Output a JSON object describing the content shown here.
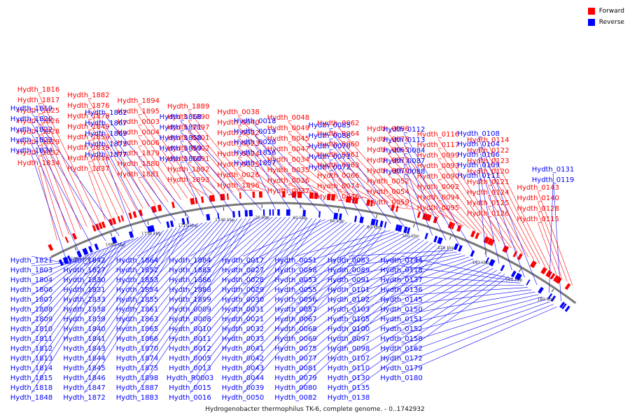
{
  "title": "Hydrogenobacter thermophilus TK-6, complete genome. - 0..1742932",
  "colors": {
    "forward": "#ff0000",
    "reverse": "#0000ff",
    "backbone": "#777777"
  },
  "legend": [
    {
      "name": "Forward",
      "color": "#ff0000"
    },
    {
      "name": "Reverse",
      "color": "#0000ff"
    }
  ],
  "ticks": [
    "1660 kbp",
    "1680 kbp",
    "1700 kbp",
    "1720 kbp",
    "1740 kbp",
    "20 kbp",
    "40 kbp",
    "60 kbp",
    "80 kbp",
    "100 kbp",
    "120 kbp",
    "140 kbp",
    "160 kbp",
    "180 kbp"
  ],
  "forward_labels": [
    "Hydth_1834",
    "Hydth_1832",
    "Hydth_1829",
    "Hydth_1828",
    "Hydth_1826",
    "Hydth_1825",
    "Hydth_1817",
    "Hydth_1816",
    "Hydth_1837",
    "Hydth_1836",
    "Hydth_1835",
    "Hydth_1850",
    "Hydth_1849",
    "Hydth_1878",
    "Hydth_1876",
    "Hydth_1882",
    "Hydth_1881",
    "Hydth_1880",
    "Hydth_1879",
    "Hydth_0006",
    "Hydth_0004",
    "Hydth_0003",
    "Hydth_1895",
    "Hydth_1894",
    "Hydth_1893",
    "Hydth_1892",
    "Hydth_1891",
    "Hydth_0002",
    "Hydth_0001",
    "Hydth_1897",
    "Hydth_1890",
    "Hydth_1889",
    "Hydth_1896",
    "Hydth_0026",
    "Hydth_0025",
    "Hydth_0024",
    "Hydth_0023",
    "Hydth_0022",
    "Hydth_0040",
    "Hydth_0038",
    "Hydth_0037",
    "Hydth_0036",
    "Hydth_0035",
    "Hydth_0034",
    "Hydth_0047",
    "Hydth_0045",
    "Hydth_0049",
    "Hydth_0048",
    "Hydth_0046",
    "Hydth_0074",
    "Hydth_0066",
    "Hydth_0063",
    "Hydth_0061",
    "Hydth_0060",
    "Hydth_0064",
    "Hydth_0062",
    "Hydth_0059",
    "Hydth_0054",
    "Hydth_0052",
    "Hydth_0076",
    "Hydth_0073",
    "Hydth_0065",
    "Hydth_0078",
    "Hydth_0096",
    "Hydth_0095",
    "Hydth_0094",
    "Hydth_0092",
    "Hydth_0090",
    "Hydth_0093",
    "Hydth_0099",
    "Hydth_0117",
    "Hydth_0116",
    "Hydth_0126",
    "Hydth_0125",
    "Hydth_0124",
    "Hydth_0121",
    "Hydth_0120",
    "Hydth_0123",
    "Hydth_0122",
    "Hydth_0114",
    "Hydth_0115",
    "Hydth_0128",
    "Hydth_0140",
    "Hydth_0143"
  ],
  "reverse_labels_outer": [
    "Hydth_1824",
    "Hydth_1823",
    "Hydth_1822",
    "Hydth_1820",
    "Hydth_1819",
    "Hydth_1877",
    "Hydth_1873",
    "Hydth_1869",
    "Hydth_1867",
    "Hydth_1862",
    "Hydth_1860",
    "Hydth_1859",
    "Hydth_1858",
    "Hydth_1871",
    "Hydth_1868",
    "Hydth_1857",
    "Hydth_1856",
    "Hydth_0020",
    "Hydth_0019",
    "Hydth_0018",
    "Hydth_0072",
    "Hydth_0071",
    "Hydth_0070",
    "Hydth_0086",
    "Hydth_0085",
    "Hydth_0088",
    "Hydth_0087",
    "Hydth_0084",
    "Hydth_0113",
    "Hydth_0112",
    "Hydth_0111",
    "Hydth_0109",
    "Hydth_0106",
    "Hydth_0104",
    "Hydth_0108",
    "Hydth_0119",
    "Hydth_0131"
  ],
  "reverse_labels_inner": [
    "Hydth_1821",
    "Hydth_1803",
    "Hydth_1804",
    "Hydth_1806",
    "Hydth_1807",
    "Hydth_1808",
    "Hydth_1809",
    "Hydth_1810",
    "Hydth_1811",
    "Hydth_1812",
    "Hydth_1813",
    "Hydth_1814",
    "Hydth_1815",
    "Hydth_1818",
    "Hydth_1848",
    "Hydth_1842",
    "Hydth_1827",
    "Hydth_1830",
    "Hydth_1831",
    "Hydth_1833",
    "Hydth_1838",
    "Hydth_1839",
    "Hydth_1840",
    "Hydth_1841",
    "Hydth_1843",
    "Hydth_1844",
    "Hydth_1845",
    "Hydth_1846",
    "Hydth_1847",
    "Hydth_1872",
    "Hydth_1864",
    "Hydth_1852",
    "Hydth_1853",
    "Hydth_1854",
    "Hydth_1855",
    "Hydth_1861",
    "Hydth_1863",
    "Hydth_1865",
    "Hydth_1866",
    "Hydth_1870",
    "Hydth_1874",
    "Hydth_1875",
    "Hydth_1898",
    "Hydth_1887",
    "Hydth_1883",
    "Hydth_1884",
    "Hydth_1885",
    "Hydth_1886",
    "Hydth_1888",
    "Hydth_1899",
    "Hydth_0009",
    "Hydth_0008",
    "Hydth_0010",
    "Hydth_0011",
    "Hydth_0012",
    "Hydth_0005",
    "Hydth_0013",
    "Hydth_R0003",
    "Hydth_0015",
    "Hydth_0016",
    "Hydth_0017",
    "Hydth_0027",
    "Hydth_0028",
    "Hydth_0029",
    "Hydth_0030",
    "Hydth_0031",
    "Hydth_0021",
    "Hydth_0032",
    "Hydth_0033",
    "Hydth_0041",
    "Hydth_0042",
    "Hydth_0043",
    "Hydth_0044",
    "Hydth_0039",
    "Hydth_0050",
    "Hydth_0051",
    "Hydth_0058",
    "Hydth_0053",
    "Hydth_0055",
    "Hydth_0056",
    "Hydth_0057",
    "Hydth_0067",
    "Hydth_0068",
    "Hydth_0069",
    "Hydth_0075",
    "Hydth_0077",
    "Hydth_0081",
    "Hydth_0079",
    "Hydth_0080",
    "Hydth_0082",
    "Hydth_0083",
    "Hydth_0089",
    "Hydth_0091",
    "Hydth_0101",
    "Hydth_0102",
    "Hydth_0103",
    "Hydth_0105",
    "Hydth_0100",
    "Hydth_0097",
    "Hydth_0098",
    "Hydth_0107",
    "Hydth_0110",
    "Hydth_0130",
    "Hydth_0135",
    "Hydth_0138",
    "Hydth_0144",
    "Hydth_0118",
    "Hydth_0137",
    "Hydth_0136",
    "Hydth_0145",
    "Hydth_0150",
    "Hydth_0151",
    "Hydth_0152",
    "Hydth_0158",
    "Hydth_0162",
    "Hydth_0172",
    "Hydth_0179",
    "Hydth_0180"
  ]
}
